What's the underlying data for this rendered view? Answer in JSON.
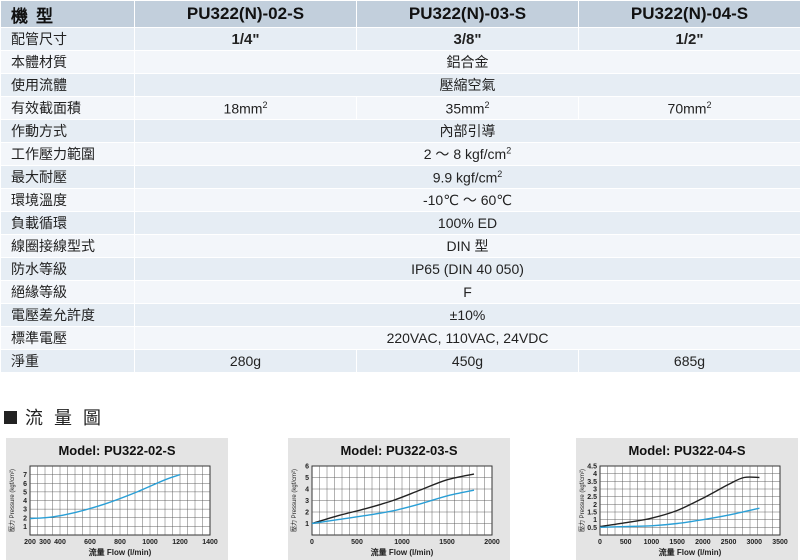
{
  "spec_table": {
    "header_label": "機型",
    "models": [
      "PU322(N)-02-S",
      "PU322(N)-03-S",
      "PU322(N)-04-S"
    ],
    "port_row": {
      "label": "配管尺寸",
      "values": [
        "1/4\"",
        "3/8\"",
        "1/2\""
      ]
    },
    "rows": [
      {
        "label": "本體材質",
        "value": "鋁合金"
      },
      {
        "label": "使用流體",
        "value": "壓縮空氣"
      },
      {
        "label": "有效截面積",
        "values": [
          "18mm",
          "35mm",
          "70mm"
        ],
        "sup": "2"
      },
      {
        "label": "作動方式",
        "value": "內部引導"
      },
      {
        "label": "工作壓力範圍",
        "value": "2 ～ 8 kgf/cm",
        "sup": "2"
      },
      {
        "label": "最大耐壓",
        "value": "9.9 kgf/cm",
        "sup": "2"
      },
      {
        "label": "環境溫度",
        "value": "-10℃ ～ 60℃"
      },
      {
        "label": "負載循環",
        "value": "100% ED"
      },
      {
        "label": "線圈接線型式",
        "value": "DIN 型"
      },
      {
        "label": "防水等級",
        "value": "IP65 (DIN 40 050)"
      },
      {
        "label": "絕緣等級",
        "value": "F"
      },
      {
        "label": "電壓差允許度",
        "value": "±10%"
      },
      {
        "label": "標準電壓",
        "value": "220VAC, 110VAC, 24VDC"
      },
      {
        "label": "淨重",
        "values": [
          "280g",
          "450g",
          "685g"
        ]
      }
    ]
  },
  "flow_section": {
    "title": "流 量 圖"
  },
  "colors": {
    "line_dark": "#222222",
    "line_blue": "#2a9fd6",
    "header_bg": "#c2cfdc"
  },
  "chart_data": [
    {
      "type": "line",
      "title": "Model: PU322-02-S",
      "xlabel": "流量 Flow (l/min)",
      "ylabel": "壓力 Pressure (kgf/cm²)",
      "xlim": [
        200,
        1400
      ],
      "ylim": [
        0,
        8
      ],
      "xticks": [
        200,
        300,
        400,
        600,
        800,
        1000,
        1200,
        1400
      ],
      "yticks": [
        1,
        2,
        3,
        4,
        5,
        6,
        7
      ],
      "series": [
        {
          "color": "#2a9fd6",
          "x": [
            200,
            350,
            500,
            700,
            900,
            1100,
            1200
          ],
          "y": [
            1.9,
            2.1,
            2.6,
            3.6,
            4.9,
            6.4,
            7.0
          ]
        }
      ]
    },
    {
      "type": "line",
      "title": "Model: PU322-03-S",
      "xlabel": "流量 Flow (l/min)",
      "ylabel": "壓力 Pressure (kgf/cm²)",
      "xlim": [
        0,
        2000
      ],
      "ylim": [
        0,
        6
      ],
      "xticks": [
        0,
        500,
        1000,
        1500,
        2000
      ],
      "yticks": [
        1,
        2,
        3,
        4,
        5,
        6
      ],
      "series": [
        {
          "color": "#222222",
          "x": [
            0,
            300,
            600,
            900,
            1200,
            1500,
            1800
          ],
          "y": [
            1.0,
            1.7,
            2.3,
            3.0,
            3.9,
            4.8,
            5.3
          ]
        },
        {
          "color": "#2a9fd6",
          "x": [
            0,
            300,
            600,
            900,
            1200,
            1500,
            1800
          ],
          "y": [
            1.0,
            1.35,
            1.7,
            2.1,
            2.7,
            3.4,
            3.9
          ]
        }
      ]
    },
    {
      "type": "line",
      "title": "Model: PU322-04-S",
      "xlabel": "流量 Flow (l/min)",
      "ylabel": "壓力 Pressure (kgf/cm²)",
      "xlim": [
        0,
        3500
      ],
      "ylim": [
        0,
        4.5
      ],
      "xticks": [
        0,
        500,
        1000,
        1500,
        2000,
        2500,
        3000,
        3500
      ],
      "yticks": [
        0.5,
        1,
        1.5,
        2,
        2.5,
        3,
        3.5,
        4,
        4.5
      ],
      "series": [
        {
          "color": "#222222",
          "x": [
            0,
            500,
            1000,
            1500,
            2000,
            2500,
            2800,
            3100
          ],
          "y": [
            0.55,
            0.8,
            1.1,
            1.6,
            2.4,
            3.3,
            3.75,
            3.75
          ]
        },
        {
          "color": "#2a9fd6",
          "x": [
            0,
            500,
            1000,
            1500,
            2000,
            2500,
            3100
          ],
          "y": [
            0.5,
            0.55,
            0.6,
            0.75,
            1.0,
            1.3,
            1.75
          ]
        }
      ]
    }
  ]
}
